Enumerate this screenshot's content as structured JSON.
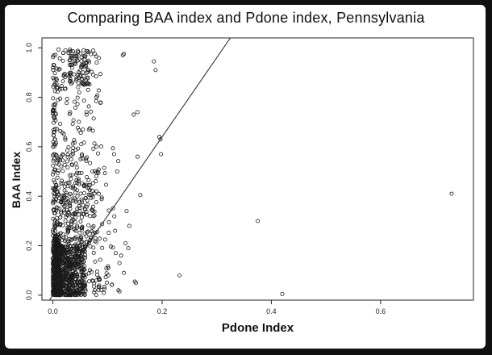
{
  "chart_data": {
    "type": "scatter",
    "title": "Comparing BAA index and Pdone index, Pennsylvania",
    "xlabel": "Pdone Index",
    "ylabel": "BAA Index",
    "xlim": [
      -0.02,
      0.77
    ],
    "ylim": [
      -0.02,
      1.04
    ],
    "xticks": [
      {
        "value": 0.0,
        "label": "0.0"
      },
      {
        "value": 0.2,
        "label": "0.2"
      },
      {
        "value": 0.4,
        "label": "0.4"
      },
      {
        "value": 0.6,
        "label": "0.6"
      }
    ],
    "yticks": [
      {
        "value": 0.0,
        "label": "0.0"
      },
      {
        "value": 0.2,
        "label": "0.2"
      },
      {
        "value": 0.4,
        "label": "0.4"
      },
      {
        "value": 0.6,
        "label": "0.6"
      },
      {
        "value": 0.8,
        "label": "0.8"
      },
      {
        "value": 1.0,
        "label": "1.0"
      }
    ],
    "grid": false,
    "reference_line": {
      "intercept": 0.0,
      "slope": 3.2
    },
    "marker": "open-circle",
    "color": "#1a1a1a",
    "outliers": [
      [
        0.73,
        0.41
      ],
      [
        0.375,
        0.3
      ],
      [
        0.42,
        0.005
      ],
      [
        0.232,
        0.08
      ],
      [
        0.185,
        0.945
      ],
      [
        0.188,
        0.91
      ],
      [
        0.195,
        0.64
      ],
      [
        0.197,
        0.63
      ],
      [
        0.198,
        0.57
      ],
      [
        0.155,
        0.56
      ],
      [
        0.16,
        0.405
      ],
      [
        0.155,
        0.74
      ],
      [
        0.148,
        0.73
      ],
      [
        0.13,
        0.975
      ],
      [
        0.128,
        0.97
      ],
      [
        0.15,
        0.055
      ],
      [
        0.152,
        0.05
      ],
      [
        0.135,
        0.34
      ],
      [
        0.14,
        0.28
      ],
      [
        0.133,
        0.21
      ],
      [
        0.138,
        0.19
      ],
      [
        0.125,
        0.16
      ],
      [
        0.122,
        0.13
      ],
      [
        0.13,
        0.09
      ],
      [
        0.12,
        0.02
      ],
      [
        0.122,
        0.015
      ],
      [
        0.115,
        0.17
      ],
      [
        0.118,
        0.5
      ],
      [
        0.112,
        0.57
      ]
    ],
    "clusters": [
      {
        "x": [
          0.0,
          0.015
        ],
        "y": [
          0.0,
          0.25
        ],
        "n": 260
      },
      {
        "x": [
          0.0,
          0.06
        ],
        "y": [
          0.0,
          0.2
        ],
        "n": 520
      },
      {
        "x": [
          0.0,
          0.11
        ],
        "y": [
          0.0,
          0.2
        ],
        "n": 150
      },
      {
        "x": [
          0.0,
          0.08
        ],
        "y": [
          0.2,
          0.45
        ],
        "n": 220
      },
      {
        "x": [
          0.0,
          0.12
        ],
        "y": [
          0.2,
          0.6
        ],
        "n": 70
      },
      {
        "x": [
          0.0,
          0.09
        ],
        "y": [
          0.45,
          1.0
        ],
        "n": 180
      },
      {
        "x": [
          0.03,
          0.07
        ],
        "y": [
          0.85,
          1.0
        ],
        "n": 90
      },
      {
        "x": [
          0.0,
          0.005
        ],
        "y": [
          0.55,
          0.95
        ],
        "n": 25
      }
    ]
  }
}
